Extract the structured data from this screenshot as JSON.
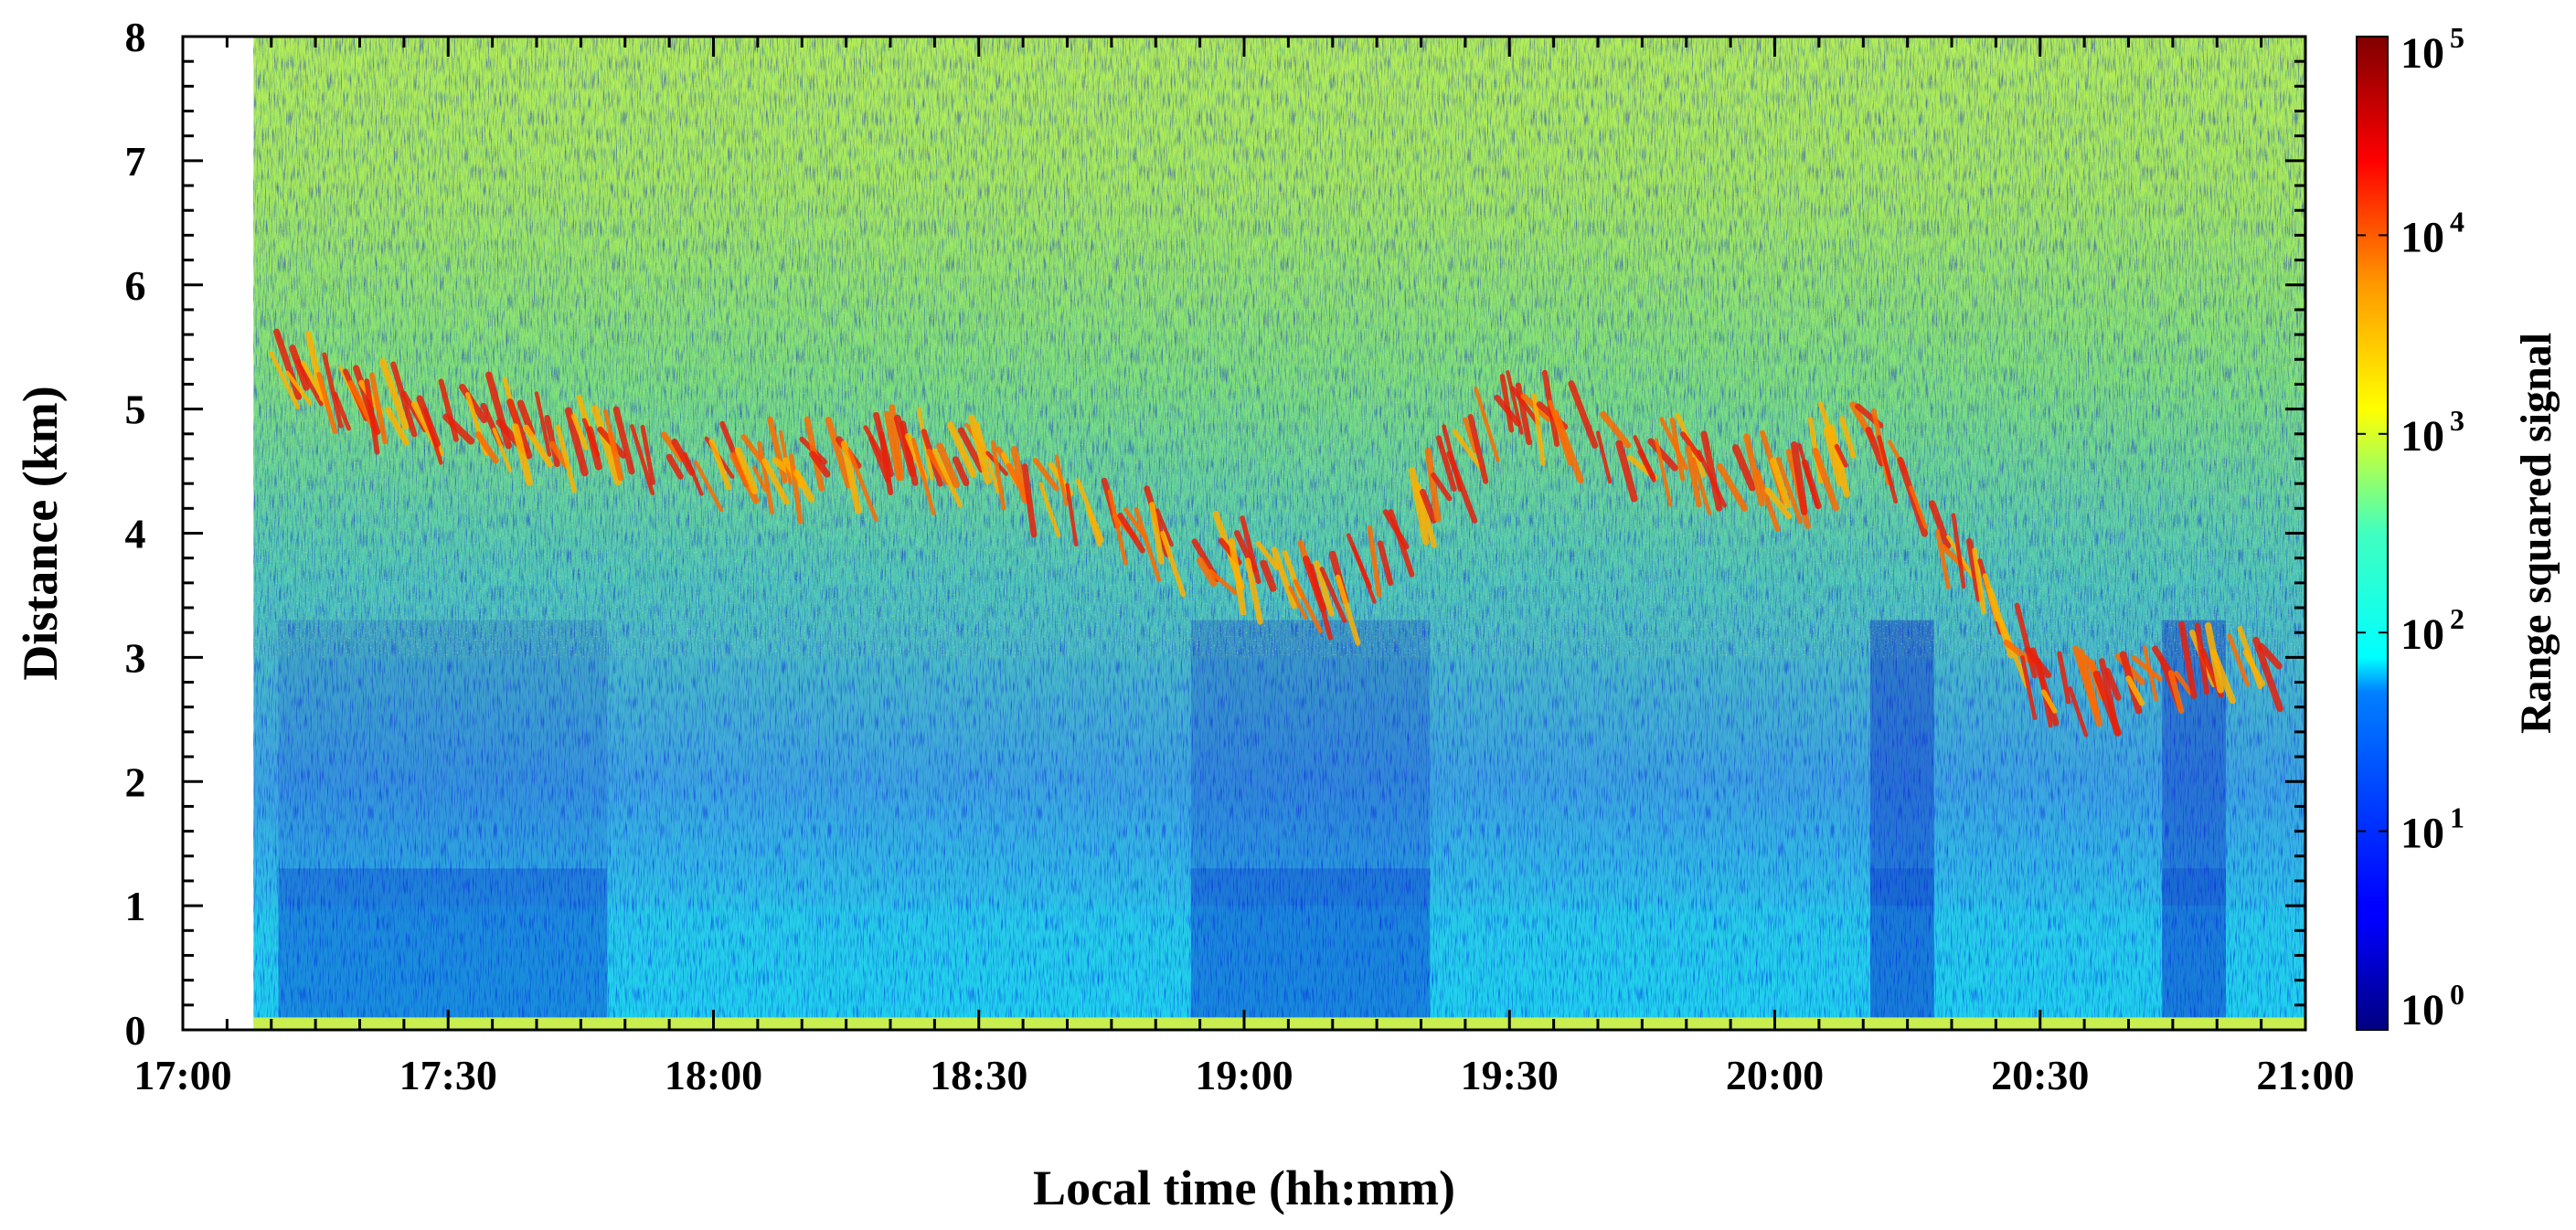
{
  "chart_data": {
    "type": "heatmap",
    "title": "",
    "xlabel": "Local time (hh:mm)",
    "ylabel": "Distance (km)",
    "x_ticks": [
      "17:00",
      "17:30",
      "18:00",
      "18:30",
      "19:00",
      "19:30",
      "20:00",
      "20:30",
      "21:00"
    ],
    "xlim": [
      "17:00",
      "21:00"
    ],
    "y_ticks": [
      "0",
      "1",
      "2",
      "3",
      "4",
      "5",
      "6",
      "7",
      "8"
    ],
    "ylim": [
      0,
      8
    ],
    "data_start_time": "17:08",
    "colorbar": {
      "label": "Range squared signal",
      "scale": "log",
      "range": [
        1,
        100000
      ],
      "tick_base": "10",
      "tick_exponents": [
        "0",
        "1",
        "2",
        "3",
        "4",
        "5"
      ],
      "colormap": "jet"
    },
    "features": [
      {
        "name": "cloud layer",
        "approx_height_km": {
          "17:10": 5.3,
          "17:30": 4.9,
          "18:00": 4.5,
          "18:30": 4.6,
          "18:50": 3.9,
          "19:10": 3.5,
          "19:30": 5.0,
          "19:45": 4.6,
          "20:00": 4.4,
          "20:10": 4.8,
          "20:30": 2.7,
          "20:55": 2.9
        }
      }
    ],
    "grid": false,
    "legend": "colorbar-right"
  }
}
